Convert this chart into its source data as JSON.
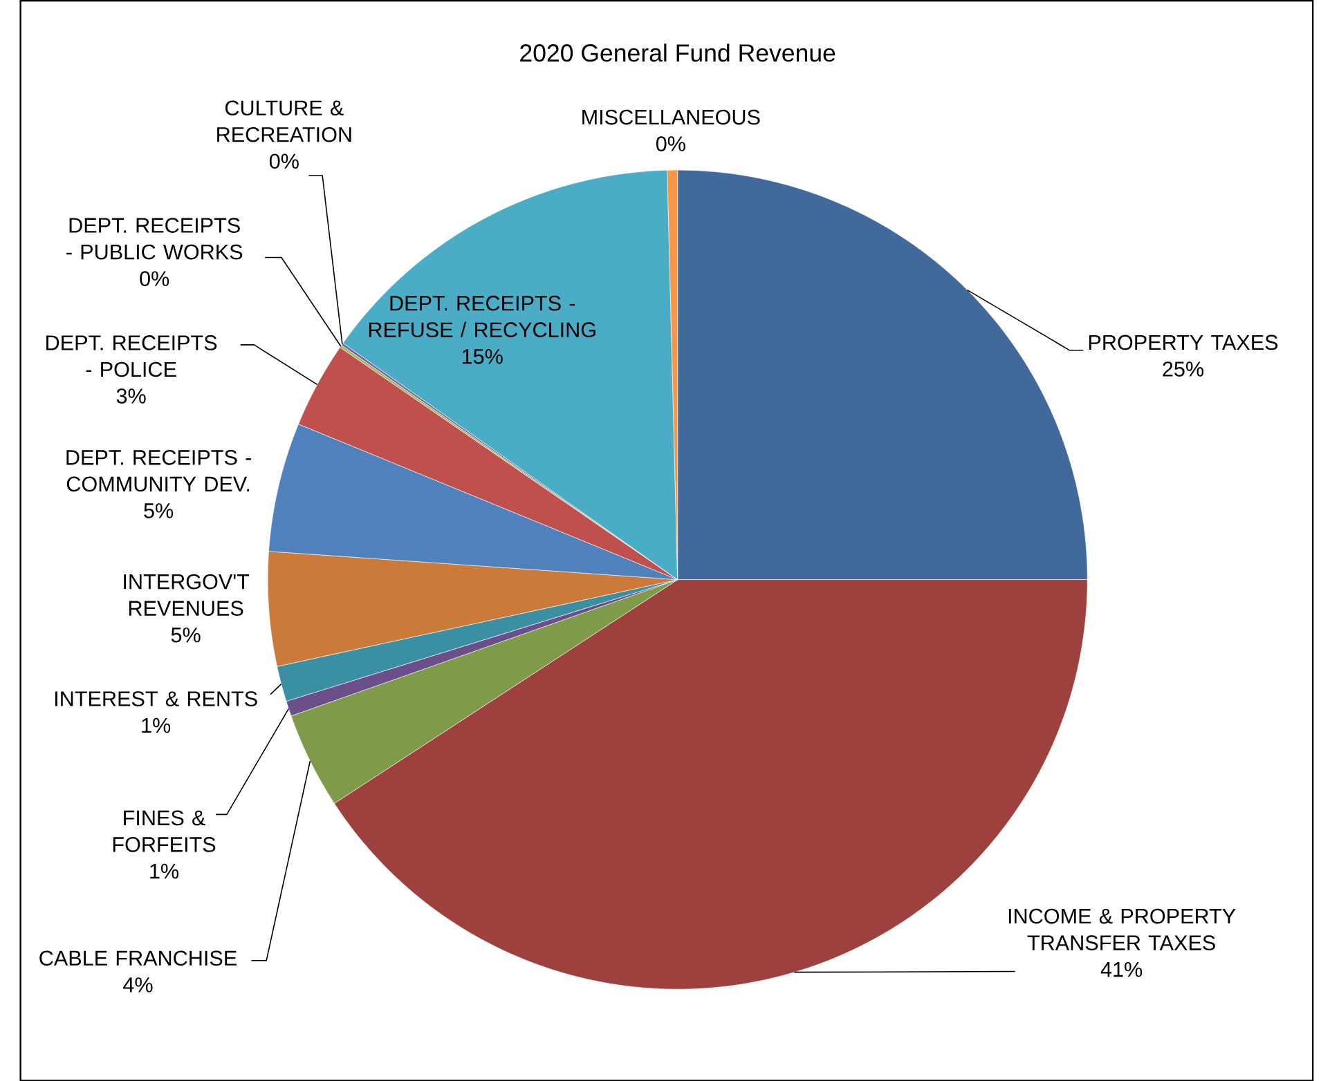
{
  "chart_data": {
    "type": "pie",
    "title": "2020 General Fund Revenue",
    "categories": [
      "PROPERTY TAXES",
      "INCOME & PROPERTY TRANSFER TAXES",
      "CABLE FRANCHISE",
      "FINES & FORFEITS",
      "INTEREST & RENTS",
      "INTERGOV'T REVENUES",
      "DEPT. RECEIPTS - COMMUNITY DEV.",
      "DEPT. RECEIPTS - POLICE",
      "DEPT. RECEIPTS - PUBLIC WORKS",
      "CULTURE & RECREATION",
      "DEPT. RECEIPTS - REFUSE / RECYCLING",
      "MISCELLANEOUS"
    ],
    "values": [
      25.0,
      40.8,
      3.8,
      0.6,
      1.4,
      4.5,
      5.1,
      3.4,
      0.1,
      0.1,
      14.8,
      0.4
    ],
    "value_labels": [
      "25%",
      "41%",
      "4%",
      "1%",
      "1%",
      "5%",
      "5%",
      "3%",
      "0%",
      "0%",
      "15%",
      "0%"
    ],
    "colors": [
      "#41699c",
      "#9e413e",
      "#7f9a48",
      "#6a4f8a",
      "#3a8fa3",
      "#cc7a39",
      "#4f81bd",
      "#c0504d",
      "#9bbb59",
      "#8064a2",
      "#4bacc6",
      "#f79646"
    ]
  }
}
